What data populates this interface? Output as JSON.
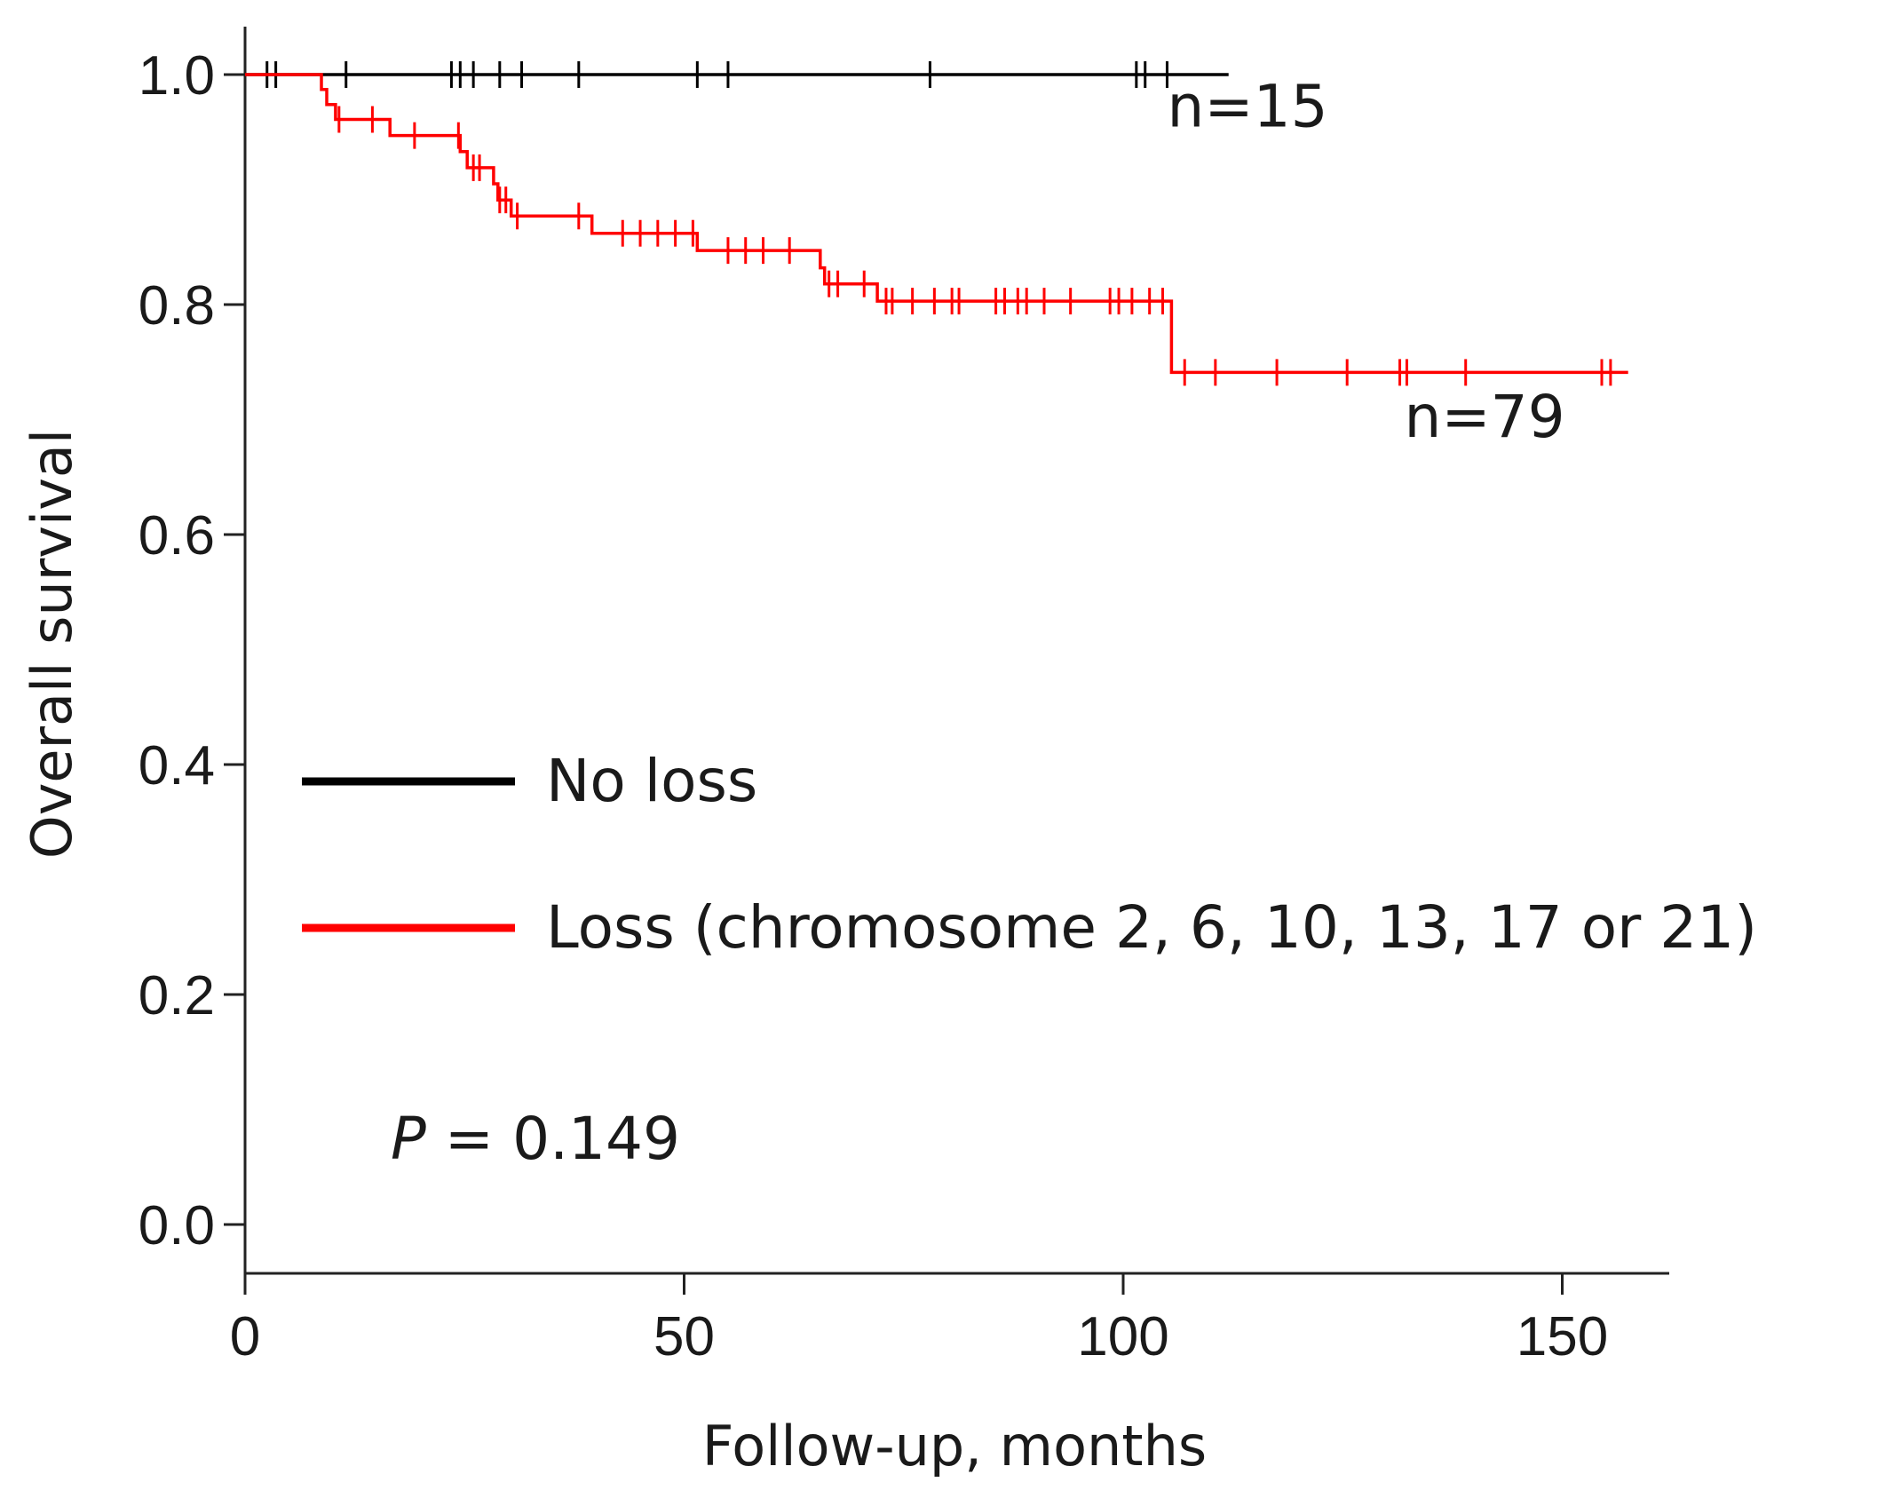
{
  "chart_data": {
    "type": "line",
    "subtype": "kaplan-meier",
    "title": "",
    "xlabel": "Follow-up, months",
    "ylabel": "Overall survival",
    "xlim": [
      0,
      162
    ],
    "ylim": [
      -0.04,
      1.04
    ],
    "x_ticks": [
      0,
      50,
      100,
      150
    ],
    "y_ticks": [
      0.0,
      0.2,
      0.4,
      0.6,
      0.8,
      1.0
    ],
    "x_tick_labels": [
      "0",
      "50",
      "100",
      "150"
    ],
    "y_tick_labels": [
      "0.0",
      "0.2",
      "0.4",
      "0.6",
      "0.8",
      "1.0"
    ],
    "grid": false,
    "legend_position": "center-left",
    "series": [
      {
        "name": "No loss",
        "color": "#000000",
        "n_label": "n=15",
        "n_label_anchor": {
          "x": 105,
          "y": 0.955
        },
        "steps": [
          {
            "x": 0,
            "y": 1.0
          },
          {
            "x": 112,
            "y": 1.0
          }
        ],
        "censored": [
          {
            "x": 2.5,
            "y": 1.0
          },
          {
            "x": 3.5,
            "y": 1.0
          },
          {
            "x": 11.5,
            "y": 1.0
          },
          {
            "x": 23.5,
            "y": 1.0
          },
          {
            "x": 24.5,
            "y": 1.0
          },
          {
            "x": 26,
            "y": 1.0
          },
          {
            "x": 29,
            "y": 1.0
          },
          {
            "x": 31.5,
            "y": 1.0
          },
          {
            "x": 38,
            "y": 1.0
          },
          {
            "x": 51.5,
            "y": 1.0
          },
          {
            "x": 55,
            "y": 1.0
          },
          {
            "x": 78,
            "y": 1.0
          },
          {
            "x": 101.5,
            "y": 1.0
          },
          {
            "x": 102.5,
            "y": 1.0
          },
          {
            "x": 105,
            "y": 1.0
          }
        ]
      },
      {
        "name": "Loss (chromosome 2, 6, 10, 13, 17 or 21)",
        "color": "#ff0000",
        "n_label": "n=79",
        "n_label_anchor": {
          "x": 132,
          "y": 0.685
        },
        "steps": [
          {
            "x": 0,
            "y": 1.0
          },
          {
            "x": 8.7,
            "y": 1.0
          },
          {
            "x": 8.7,
            "y": 0.987
          },
          {
            "x": 9.3,
            "y": 0.987
          },
          {
            "x": 9.3,
            "y": 0.974
          },
          {
            "x": 10.3,
            "y": 0.974
          },
          {
            "x": 10.3,
            "y": 0.961
          },
          {
            "x": 16.5,
            "y": 0.961
          },
          {
            "x": 16.5,
            "y": 0.947
          },
          {
            "x": 24.5,
            "y": 0.947
          },
          {
            "x": 24.5,
            "y": 0.933
          },
          {
            "x": 25.3,
            "y": 0.933
          },
          {
            "x": 25.3,
            "y": 0.919
          },
          {
            "x": 28.3,
            "y": 0.919
          },
          {
            "x": 28.3,
            "y": 0.905
          },
          {
            "x": 28.8,
            "y": 0.905
          },
          {
            "x": 28.8,
            "y": 0.891
          },
          {
            "x": 30.3,
            "y": 0.891
          },
          {
            "x": 30.3,
            "y": 0.877
          },
          {
            "x": 39.5,
            "y": 0.877
          },
          {
            "x": 39.5,
            "y": 0.862
          },
          {
            "x": 51.5,
            "y": 0.862
          },
          {
            "x": 51.5,
            "y": 0.847
          },
          {
            "x": 65.5,
            "y": 0.847
          },
          {
            "x": 65.5,
            "y": 0.832
          },
          {
            "x": 66,
            "y": 0.832
          },
          {
            "x": 66,
            "y": 0.818
          },
          {
            "x": 72,
            "y": 0.818
          },
          {
            "x": 72,
            "y": 0.803
          },
          {
            "x": 105.5,
            "y": 0.803
          },
          {
            "x": 105.5,
            "y": 0.741
          },
          {
            "x": 157.5,
            "y": 0.741
          }
        ],
        "censored": [
          {
            "x": 10.7,
            "y": 0.961
          },
          {
            "x": 14.5,
            "y": 0.961
          },
          {
            "x": 19.3,
            "y": 0.947
          },
          {
            "x": 24.3,
            "y": 0.947
          },
          {
            "x": 26,
            "y": 0.919
          },
          {
            "x": 26.7,
            "y": 0.919
          },
          {
            "x": 29,
            "y": 0.891
          },
          {
            "x": 29.7,
            "y": 0.891
          },
          {
            "x": 31,
            "y": 0.877
          },
          {
            "x": 38,
            "y": 0.877
          },
          {
            "x": 43,
            "y": 0.862
          },
          {
            "x": 45,
            "y": 0.862
          },
          {
            "x": 47,
            "y": 0.862
          },
          {
            "x": 49,
            "y": 0.862
          },
          {
            "x": 51,
            "y": 0.862
          },
          {
            "x": 55,
            "y": 0.847
          },
          {
            "x": 57,
            "y": 0.847
          },
          {
            "x": 59,
            "y": 0.847
          },
          {
            "x": 62,
            "y": 0.847
          },
          {
            "x": 66.5,
            "y": 0.818
          },
          {
            "x": 67.5,
            "y": 0.818
          },
          {
            "x": 70.5,
            "y": 0.818
          },
          {
            "x": 73,
            "y": 0.803
          },
          {
            "x": 73.7,
            "y": 0.803
          },
          {
            "x": 76,
            "y": 0.803
          },
          {
            "x": 78.5,
            "y": 0.803
          },
          {
            "x": 80.5,
            "y": 0.803
          },
          {
            "x": 81.3,
            "y": 0.803
          },
          {
            "x": 85.5,
            "y": 0.803
          },
          {
            "x": 86.5,
            "y": 0.803
          },
          {
            "x": 88,
            "y": 0.803
          },
          {
            "x": 89,
            "y": 0.803
          },
          {
            "x": 91,
            "y": 0.803
          },
          {
            "x": 94,
            "y": 0.803
          },
          {
            "x": 98.5,
            "y": 0.803
          },
          {
            "x": 99.5,
            "y": 0.803
          },
          {
            "x": 101,
            "y": 0.803
          },
          {
            "x": 103,
            "y": 0.803
          },
          {
            "x": 104.5,
            "y": 0.803
          },
          {
            "x": 107,
            "y": 0.741
          },
          {
            "x": 110.5,
            "y": 0.741
          },
          {
            "x": 117.5,
            "y": 0.741
          },
          {
            "x": 125.5,
            "y": 0.741
          },
          {
            "x": 131.5,
            "y": 0.741
          },
          {
            "x": 132.3,
            "y": 0.741
          },
          {
            "x": 139,
            "y": 0.741
          },
          {
            "x": 154.5,
            "y": 0.741
          },
          {
            "x": 155.5,
            "y": 0.741
          }
        ]
      }
    ],
    "annotations": [
      {
        "text": "P",
        "style": "italic"
      },
      {
        "text": " = 0.149"
      }
    ],
    "p_value_text": "P = 0.149",
    "p_symbol": "P",
    "p_rest": " = 0.149"
  }
}
